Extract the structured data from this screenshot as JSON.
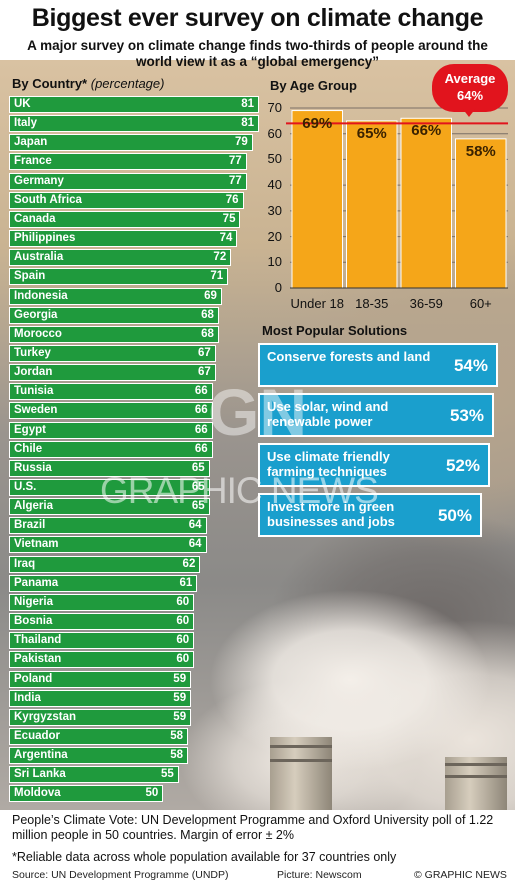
{
  "header": {
    "title": "Biggest ever survey on climate change",
    "subtitle": "A major survey on climate change finds two-thirds of people around the world view it as a “global emergency”"
  },
  "labels": {
    "by_country": "By Country*",
    "by_country_sub": "(percentage)",
    "by_age": "By Age Group",
    "solutions": "Most Popular Solutions"
  },
  "average": {
    "label": "Average",
    "value": "64%",
    "numeric": 64
  },
  "colors": {
    "country_bar": "#1f9a3d",
    "age_bar": "#f5a619",
    "solution_box": "#1a9fcd",
    "average_red": "#e1141d"
  },
  "watermark": "GRAPHIC NEWS",
  "chart_data": [
    {
      "type": "bar",
      "orientation": "horizontal",
      "title": "By Country*",
      "subtitle": "(percentage)",
      "categories": [
        "UK",
        "Italy",
        "Japan",
        "France",
        "Germany",
        "South Africa",
        "Canada",
        "Philippines",
        "Australia",
        "Spain",
        "Indonesia",
        "Georgia",
        "Morocco",
        "Turkey",
        "Jordan",
        "Tunisia",
        "Sweden",
        "Egypt",
        "Chile",
        "Russia",
        "U.S.",
        "Algeria",
        "Brazil",
        "Vietnam",
        "Iraq",
        "Panama",
        "Nigeria",
        "Bosnia",
        "Thailand",
        "Pakistan",
        "Poland",
        "India",
        "Kyrgyzstan",
        "Ecuador",
        "Argentina",
        "Sri Lanka",
        "Moldova"
      ],
      "values": [
        81,
        81,
        79,
        77,
        77,
        76,
        75,
        74,
        72,
        71,
        69,
        68,
        68,
        67,
        67,
        66,
        66,
        66,
        66,
        65,
        65,
        65,
        64,
        64,
        62,
        61,
        60,
        60,
        60,
        60,
        59,
        59,
        59,
        58,
        58,
        55,
        50
      ],
      "xlim": [
        0,
        81
      ]
    },
    {
      "type": "bar",
      "title": "By Age Group",
      "categories": [
        "Under 18",
        "18-35",
        "36-59",
        "60+"
      ],
      "values": [
        69,
        65,
        66,
        58
      ],
      "value_labels": [
        "69%",
        "65%",
        "66%",
        "58%"
      ],
      "yticks": [
        "0",
        "10",
        "20",
        "30",
        "40",
        "50",
        "60",
        "70"
      ],
      "ylim": [
        0,
        70
      ],
      "reference_line": 64
    }
  ],
  "solutions": [
    {
      "text": "Conserve forests and land",
      "pct": "54%"
    },
    {
      "text": "Use solar, wind and renewable power",
      "pct": "53%"
    },
    {
      "text": "Use climate friendly farming techniques",
      "pct": "52%"
    },
    {
      "text": "Invest more in green businesses and jobs",
      "pct": "50%"
    }
  ],
  "footer": {
    "note1": "People’s Climate Vote: UN Development Programme and Oxford University poll of 1.22 million people in 50 countries. Margin of error ± 2%",
    "note2": "*Reliable data across whole population available for 37 countries only",
    "source": "Source: UN Development Programme (UNDP)",
    "picture": "Picture: Newscom",
    "credit": "© GRAPHIC NEWS"
  }
}
